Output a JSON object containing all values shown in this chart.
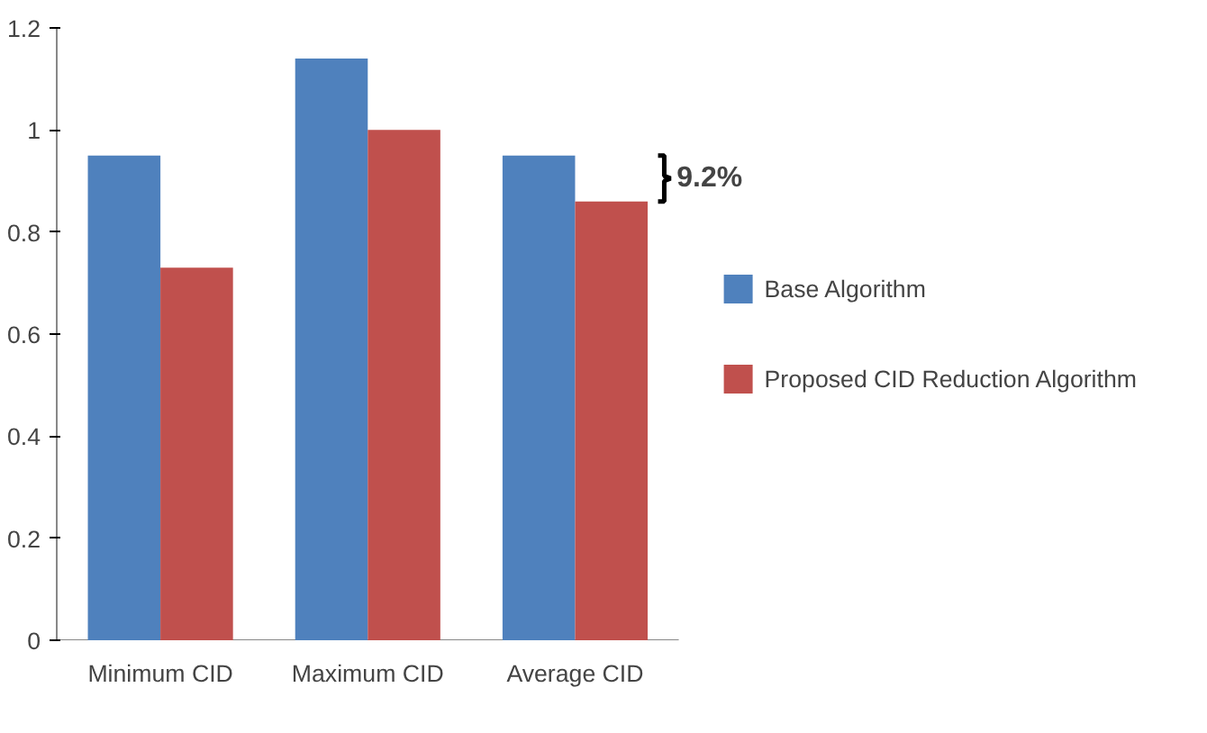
{
  "chart_data": {
    "type": "bar",
    "categories": [
      "Minimum CID",
      "Maximum CID",
      "Average CID"
    ],
    "series": [
      {
        "name": "Base Algorithm",
        "color": "#4f81bd",
        "values": [
          0.95,
          1.14,
          0.95
        ]
      },
      {
        "name": "Proposed CID Reduction Algorithm",
        "color": "#c0504d",
        "values": [
          0.73,
          1.0,
          0.86
        ]
      }
    ],
    "ylim": [
      0,
      1.2
    ],
    "yticks": [
      0,
      0.2,
      0.4,
      0.6,
      0.8,
      1,
      1.2
    ],
    "legend": "right",
    "annotations": [
      "9.2%"
    ]
  }
}
